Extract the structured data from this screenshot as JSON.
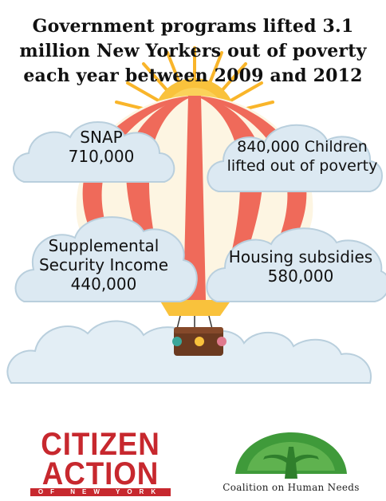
{
  "title": {
    "line1": "Government programs lifted 3.1",
    "line2": "million New Yorkers out of poverty",
    "line3": "each year between 2009 and 2012"
  },
  "clouds": {
    "snap": {
      "line1": "SNAP",
      "line2": "710,000"
    },
    "children": {
      "line1": "840,000 Children",
      "line2": "lifted out of poverty"
    },
    "ssi": {
      "line1": "Supplemental",
      "line2": "Security Income",
      "line3": "440,000"
    },
    "housing": {
      "line1": "Housing subsidies",
      "line2": "580,000"
    }
  },
  "logos": {
    "citizen_action": {
      "line1": "CITIZEN",
      "line2": "ACTION",
      "line3": "OF NEW YORK"
    },
    "coalition": {
      "text": "Coalition on Human Needs"
    }
  },
  "colors": {
    "balloon_red": "#ef6a5a",
    "balloon_cream": "#fdf5e2",
    "sun_yellow": "#f9c23c",
    "cloud_fill": "#d9e9f3",
    "basket_brown": "#6b3a20",
    "citizen_red": "#c7282e",
    "tree_green": "#3f9a3a"
  }
}
